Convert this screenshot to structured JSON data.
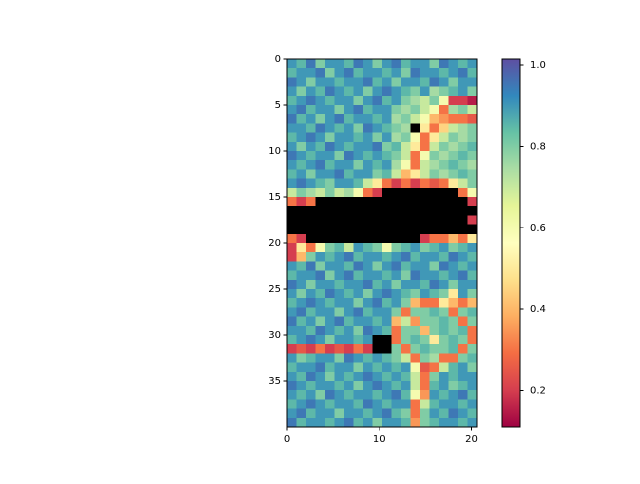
{
  "chart_data": {
    "type": "heatmap",
    "colormap": "Spectral",
    "under_color": "#000000",
    "xlim": [
      0,
      20.6
    ],
    "ylim": [
      40,
      0
    ],
    "xticks": [
      0,
      10,
      20
    ],
    "yticks": [
      0,
      5,
      10,
      15,
      20,
      25,
      30,
      35
    ],
    "clim": [
      0.11,
      1.015
    ],
    "cticks": [
      0.2,
      0.4,
      0.6,
      0.8,
      {
        "value": 1,
        "label": "1.0"
      }
    ],
    "z": [
      [
        0.9,
        0.85,
        0.95,
        0.8,
        0.9,
        0.9,
        0.85,
        0.95,
        0.9,
        0.8,
        0.9,
        0.95,
        0.85,
        0.9,
        0.9,
        0.8,
        0.95,
        0.9,
        0.85,
        0.9
      ],
      [
        0.85,
        0.9,
        0.9,
        0.95,
        0.8,
        0.9,
        0.95,
        0.85,
        0.9,
        0.9,
        0.85,
        0.9,
        0.8,
        0.95,
        0.9,
        0.9,
        0.85,
        0.9,
        0.95,
        0.85
      ],
      [
        0.95,
        0.9,
        0.8,
        0.9,
        0.9,
        0.85,
        0.9,
        0.9,
        0.95,
        0.85,
        0.9,
        0.8,
        0.9,
        0.9,
        0.85,
        0.95,
        0.9,
        0.8,
        0.9,
        0.9
      ],
      [
        0.9,
        0.8,
        0.9,
        0.85,
        0.95,
        0.9,
        0.85,
        0.9,
        0.8,
        0.9,
        0.95,
        0.9,
        0.85,
        0.8,
        0.9,
        0.75,
        0.8,
        0.85,
        0.9,
        0.8
      ],
      [
        0.85,
        0.9,
        0.95,
        0.9,
        0.85,
        0.9,
        0.9,
        0.8,
        0.9,
        0.95,
        0.85,
        0.9,
        0.8,
        0.75,
        0.7,
        0.8,
        0.6,
        0.2,
        0.2,
        0.15
      ],
      [
        0.9,
        0.95,
        0.85,
        0.9,
        0.9,
        0.8,
        0.9,
        0.95,
        0.85,
        0.9,
        0.9,
        0.8,
        0.75,
        0.8,
        0.7,
        0.6,
        0.3,
        0.75,
        0.8,
        0.7
      ],
      [
        0.95,
        0.85,
        0.9,
        0.8,
        0.9,
        0.95,
        0.85,
        0.9,
        0.9,
        0.85,
        0.9,
        0.75,
        0.8,
        0.7,
        0.6,
        0.4,
        0.35,
        0.3,
        0.3,
        0.25
      ],
      [
        0.9,
        0.9,
        0.85,
        0.95,
        0.9,
        0.85,
        0.9,
        0.8,
        0.95,
        0.9,
        0.85,
        0.8,
        0.75,
        0,
        0.5,
        0.3,
        0.45,
        0.7,
        0.75,
        0.8
      ],
      [
        0.85,
        0.9,
        0.95,
        0.9,
        0.8,
        0.9,
        0.9,
        0.85,
        0.9,
        0.8,
        0.9,
        0.75,
        0.8,
        0.6,
        0.3,
        0.5,
        0.7,
        0.8,
        0.75,
        0.8
      ],
      [
        0.9,
        0.8,
        0.9,
        0.85,
        0.95,
        0.9,
        0.85,
        0.9,
        0.9,
        0.95,
        0.8,
        0.85,
        0.7,
        0.5,
        0.3,
        0.7,
        0.8,
        0.75,
        0.8,
        0.85
      ],
      [
        0.95,
        0.9,
        0.85,
        0.9,
        0.9,
        0.8,
        0.95,
        0.9,
        0.85,
        0.9,
        0.85,
        0.8,
        0.7,
        0.3,
        0.6,
        0.8,
        0.75,
        0.8,
        0.85,
        0.8
      ],
      [
        0.9,
        0.85,
        0.9,
        0.95,
        0.85,
        0.9,
        0.9,
        0.8,
        0.9,
        0.85,
        0.9,
        0.75,
        0.6,
        0.3,
        0.7,
        0.75,
        0.8,
        0.85,
        0.8,
        0.75
      ],
      [
        0.85,
        0.9,
        0.8,
        0.9,
        0.9,
        0.95,
        0.85,
        0.9,
        0.9,
        0.8,
        0.85,
        0.7,
        0.4,
        0.5,
        0.7,
        0.8,
        0.75,
        0.8,
        0.85,
        0.8
      ],
      [
        0.9,
        0.95,
        0.9,
        0.85,
        0.8,
        0.9,
        0.9,
        0.85,
        0.7,
        0.5,
        0.3,
        0.2,
        0.3,
        0.2,
        0.3,
        0.25,
        0.3,
        0.5,
        0.7,
        0.8
      ],
      [
        0.7,
        0.8,
        0.75,
        0.7,
        0.8,
        0.7,
        0.75,
        0.6,
        0.3,
        0.2,
        0,
        0,
        0,
        0,
        0,
        0,
        0,
        0,
        0.3,
        0.6
      ],
      [
        0.3,
        0.2,
        0.3,
        0,
        0,
        0,
        0,
        0,
        0,
        0,
        0,
        0,
        0,
        0,
        0,
        0,
        0,
        0,
        0,
        0.2
      ],
      [
        0,
        0,
        0,
        0,
        0,
        0,
        0,
        0,
        0,
        0,
        0,
        0,
        0,
        0,
        0,
        0,
        0,
        0,
        0,
        0
      ],
      [
        0,
        0,
        0,
        0,
        0,
        0,
        0,
        0,
        0,
        0,
        0,
        0,
        0,
        0,
        0,
        0,
        0,
        0,
        0,
        0.2
      ],
      [
        0,
        0,
        0,
        0,
        0,
        0,
        0,
        0,
        0,
        0,
        0,
        0,
        0,
        0,
        0,
        0,
        0,
        0,
        0,
        0
      ],
      [
        0.3,
        0.2,
        0,
        0,
        0,
        0,
        0,
        0,
        0,
        0,
        0,
        0,
        0,
        0,
        0.2,
        0.3,
        0.3,
        0.4,
        0.3,
        0.5
      ],
      [
        0.2,
        0.5,
        0.3,
        0.6,
        0.8,
        0.85,
        0.7,
        0.9,
        0.85,
        0.8,
        0.6,
        0.8,
        0.85,
        0.9,
        0.8,
        0.85,
        0.9,
        0.8,
        0.85,
        0.9
      ],
      [
        0.2,
        0.4,
        0.8,
        0.9,
        0.85,
        0.9,
        0.95,
        0.85,
        0.9,
        0.9,
        0.85,
        0.9,
        0.95,
        0.85,
        0.9,
        0.9,
        0.85,
        0.95,
        0.9,
        0.85
      ],
      [
        0.9,
        0.85,
        0.95,
        0.8,
        0.9,
        0.9,
        0.85,
        0.95,
        0.9,
        0.8,
        0.9,
        0.95,
        0.85,
        0.9,
        0.9,
        0.8,
        0.95,
        0.9,
        0.85,
        0.9
      ],
      [
        0.85,
        0.9,
        0.9,
        0.95,
        0.8,
        0.9,
        0.95,
        0.85,
        0.9,
        0.9,
        0.85,
        0.9,
        0.8,
        0.95,
        0.9,
        0.9,
        0.85,
        0.9,
        0.95,
        0.85
      ],
      [
        0.95,
        0.9,
        0.8,
        0.9,
        0.9,
        0.85,
        0.9,
        0.9,
        0.95,
        0.85,
        0.9,
        0.8,
        0.9,
        0.9,
        0.85,
        0.95,
        0.9,
        0.8,
        0.9,
        0.9
      ],
      [
        0.9,
        0.8,
        0.9,
        0.85,
        0.95,
        0.9,
        0.85,
        0.9,
        0.8,
        0.9,
        0.95,
        0.9,
        0.85,
        0.8,
        0.9,
        0.85,
        0.8,
        0.5,
        0.9,
        0.8
      ],
      [
        0.85,
        0.9,
        0.95,
        0.9,
        0.85,
        0.9,
        0.9,
        0.8,
        0.9,
        0.95,
        0.85,
        0.9,
        0.8,
        0.4,
        0.3,
        0.3,
        0.5,
        0.4,
        0.3,
        0.4
      ],
      [
        0.9,
        0.95,
        0.85,
        0.9,
        0.9,
        0.8,
        0.9,
        0.95,
        0.85,
        0.9,
        0.9,
        0.8,
        0.3,
        0.8,
        0.8,
        0.85,
        0.8,
        0.3,
        0.8,
        0.85
      ],
      [
        0.95,
        0.85,
        0.9,
        0.8,
        0.9,
        0.95,
        0.85,
        0.9,
        0.9,
        0.85,
        0.9,
        0.4,
        0.7,
        0.35,
        0.8,
        0.8,
        0.85,
        0.8,
        0.3,
        0.8
      ],
      [
        0.9,
        0.9,
        0.85,
        0.95,
        0.9,
        0.85,
        0.9,
        0.8,
        0.95,
        0.9,
        0.85,
        0.3,
        0.8,
        0.8,
        0.4,
        0.8,
        0.85,
        0.8,
        0.85,
        0.3
      ],
      [
        0.85,
        0.9,
        0.95,
        0.9,
        0.8,
        0.9,
        0.9,
        0.85,
        0.9,
        0,
        0,
        0.3,
        0.8,
        0.85,
        0.8,
        0.5,
        0.8,
        0.85,
        0.8,
        0.3
      ],
      [
        0.2,
        0.25,
        0.2,
        0.3,
        0.2,
        0.25,
        0.2,
        0.3,
        0.2,
        0,
        0,
        0.8,
        0.3,
        0.8,
        0.85,
        0.8,
        0.8,
        0.85,
        0.3,
        0.8
      ],
      [
        0.9,
        0.8,
        0.85,
        0.9,
        0.9,
        0.8,
        0.95,
        0.9,
        0.85,
        0.9,
        0.85,
        0.8,
        0.7,
        0.3,
        0.8,
        0.75,
        0.3,
        0.3,
        0.8,
        0.85
      ],
      [
        0.85,
        0.9,
        0.9,
        0.95,
        0.85,
        0.9,
        0.9,
        0.8,
        0.9,
        0.85,
        0.9,
        0.85,
        0.9,
        0.6,
        0.25,
        0.3,
        0.7,
        0.85,
        0.9,
        0.8
      ],
      [
        0.9,
        0.85,
        0.95,
        0.9,
        0.8,
        0.9,
        0.85,
        0.9,
        0.95,
        0.9,
        0.85,
        0.9,
        0.85,
        0.7,
        0.3,
        0.8,
        0.9,
        0.85,
        0.9,
        0.9
      ],
      [
        0.95,
        0.9,
        0.85,
        0.9,
        0.9,
        0.85,
        0.9,
        0.8,
        0.9,
        0.95,
        0.9,
        0.85,
        0.9,
        0.7,
        0.3,
        0.85,
        0.9,
        0.8,
        0.85,
        0.9
      ],
      [
        0.9,
        0.85,
        0.9,
        0.8,
        0.95,
        0.9,
        0.85,
        0.9,
        0.9,
        0.85,
        0.9,
        0.95,
        0.85,
        0.6,
        0.35,
        0.9,
        0.85,
        0.9,
        0.95,
        0.85
      ],
      [
        0.85,
        0.9,
        0.95,
        0.9,
        0.85,
        0.9,
        0.9,
        0.85,
        0.95,
        0.9,
        0.85,
        0.9,
        0.9,
        0.3,
        0.7,
        0.85,
        0.9,
        0.9,
        0.85,
        0.9
      ],
      [
        0.9,
        0.95,
        0.85,
        0.9,
        0.9,
        0.8,
        0.9,
        0.9,
        0.85,
        0.9,
        0.95,
        0.85,
        0.8,
        0.3,
        0.8,
        0.9,
        0.85,
        0.95,
        0.9,
        0.85
      ],
      [
        0.95,
        0.85,
        0.9,
        0.9,
        0.85,
        0.9,
        0.95,
        0.85,
        0.9,
        0.8,
        0.9,
        0.9,
        0.85,
        0.35,
        0.8,
        0.85,
        0.9,
        0.9,
        0.85,
        0.9
      ]
    ]
  }
}
